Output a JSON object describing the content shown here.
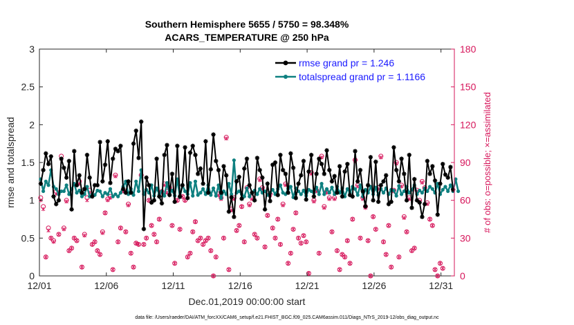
{
  "chart_data": {
    "type": "line",
    "title_line1": "Southern Hemisphere 5655 / 5750 = 98.348%",
    "title_line2": "ACARS_TEMPERATURE @ 250 hPa",
    "xlabel": "Dec.01,2019 00:00:00 start",
    "ylabel_left": "rmse and totalspread",
    "ylabel_right": "# of obs: o=possible; ×=assimilated",
    "xlim": [
      0,
      31
    ],
    "ylim_left": [
      0,
      3
    ],
    "ylim_right": [
      0,
      180
    ],
    "x_tick_values": [
      0,
      5,
      10,
      15,
      20,
      25,
      30
    ],
    "x_tick_labels": [
      "12/01",
      "12/06",
      "12/11",
      "12/16",
      "12/21",
      "12/26",
      "12/31"
    ],
    "y_left_ticks": [
      "0",
      "0.5",
      "1",
      "1.5",
      "2",
      "2.5",
      "3"
    ],
    "y_right_ticks": [
      "0",
      "30",
      "60",
      "90",
      "120",
      "150",
      "180"
    ],
    "footnote": "data file: /Users/raeder/DAI/ATM_forcXX/CAM6_setup/f.e21.FHIST_BGC.f09_025.CAM6assim.011/Diags_NTrS_2019-12/obs_diag_output.nc",
    "colors": {
      "rmse": "#000000",
      "spread": "#0e8080",
      "obs": "#d6155a",
      "axis_right": "#d6155a"
    },
    "series": [
      {
        "name": "rmse",
        "legend": "rmse grand pr = 1.246",
        "values": [
          1.22,
          1.4,
          1.62,
          1.48,
          1.58,
          1.05,
          0.95,
          1.0,
          1.55,
          1.43,
          1.3,
          1.52,
          0.88,
          1.65,
          1.2,
          1.33,
          1.1,
          1.15,
          1.6,
          1.3,
          1.05,
          1.2,
          1.2,
          1.77,
          1.25,
          1.47,
          1.78,
          1.23,
          1.55,
          1.68,
          1.65,
          1.72,
          1.15,
          1.1,
          1.25,
          1.1,
          1.75,
          1.92,
          1.56,
          2.04,
          0.62,
          1.3,
          1.2,
          0.97,
          1.0,
          1.55,
          1.05,
          0.96,
          1.6,
          1.73,
          1.07,
          1.35,
          0.98,
          1.72,
          1.05,
          1.2,
          1.7,
          1.03,
          1.63,
          1.72,
          1.6,
          1.35,
          1.42,
          1.22,
          1.78,
          1.1,
          1.41,
          1.87,
          1.52,
          1.4,
          1.1,
          1.45,
          1.33,
          0.85,
          1.04,
          0.78,
          1.25,
          1.31,
          1.02,
          1.42,
          1.55,
          1.2,
          1.1,
          1.0,
          1.56,
          1.4,
          1.3,
          0.88,
          1.22,
          0.99,
          1.47,
          1.5,
          1.07,
          1.6,
          1.4,
          1.35,
          1.1,
          1.62,
          1.43,
          1.03,
          1.22,
          1.33,
          1.52,
          1.01,
          1.38,
          1.6,
          1.05,
          1.35,
          1.55,
          1.48,
          1.35,
          1.66,
          1.4,
          1.25,
          1.32,
          1.1,
          1.45,
          1.05,
          1.38,
          1.48,
          1.07,
          1.05,
          1.65,
          1.25,
          1.4,
          1.12,
          0.92,
          1.2,
          1.57,
          1.0,
          1.51,
          0.98,
          1.2,
          1.25,
          1.33,
          0.95,
          0.98,
          1.7,
          1.4,
          1.25,
          1.55,
          1.35,
          1.0,
          1.6,
          0.9,
          1.28,
          1.0,
          0.97,
          0.78,
          0.95,
          1.52,
          1.35,
          1.45,
          1.26,
          0.81,
          1.22,
          1.48,
          1.34,
          1.3,
          1.44,
          1.14
        ]
      },
      {
        "name": "totalspread",
        "legend": "totalspread grand pr = 1.1166",
        "values": [
          1.28,
          1.12,
          1.25,
          1.2,
          1.4,
          1.18,
          1.15,
          1.08,
          1.12,
          1.12,
          1.2,
          1.08,
          1.15,
          1.22,
          1.1,
          1.13,
          1.05,
          1.08,
          1.18,
          1.05,
          1.08,
          1.07,
          1.13,
          1.12,
          1.05,
          1.1,
          1.08,
          1.15,
          1.05,
          1.08,
          1.05,
          1.1,
          1.18,
          1.25,
          1.08,
          1.15,
          1.07,
          1.25,
          1.12,
          1.4,
          1.08,
          1.14,
          1.1,
          1.2,
          1.06,
          1.16,
          1.08,
          1.12,
          1.06,
          1.23,
          1.08,
          1.13,
          1.06,
          1.28,
          1.04,
          1.2,
          1.12,
          1.08,
          1.23,
          1.06,
          1.25,
          1.07,
          1.1,
          1.15,
          1.08,
          1.2,
          1.07,
          1.16,
          1.06,
          1.2,
          1.03,
          1.12,
          1.08,
          1.22,
          1.08,
          1.53,
          1.1,
          1.12,
          1.08,
          1.05,
          1.16,
          1.05,
          1.1,
          1.13,
          1.08,
          1.15,
          1.1,
          1.12,
          1.07,
          1.1,
          1.14,
          1.08,
          1.15,
          1.2,
          1.1,
          1.08,
          1.15,
          1.18,
          1.04,
          1.16,
          1.12,
          1.08,
          1.13,
          1.06,
          1.14,
          1.12,
          1.1,
          1.17,
          1.08,
          1.22,
          1.08,
          1.15,
          1.1,
          1.17,
          1.08,
          1.18,
          1.1,
          1.16,
          1.05,
          1.15,
          1.1,
          1.18,
          1.15,
          1.07,
          1.2,
          1.05,
          1.14,
          1.1,
          1.18,
          1.08,
          1.17,
          1.07,
          1.15,
          1.1,
          1.16,
          1.08,
          1.14,
          1.13,
          1.06,
          1.19,
          1.08,
          1.12,
          1.18,
          1.1,
          1.14,
          1.2,
          1.08,
          1.13,
          1.1,
          1.16,
          1.12,
          1.18,
          1.15,
          1.1,
          1.22,
          1.08,
          1.14,
          1.18,
          1.12,
          1.2,
          1.12,
          1.28,
          1.12
        ]
      },
      {
        "name": "obs_possible",
        "marker": "o",
        "values": [
          62,
          55,
          15,
          38,
          30,
          28,
          67,
          33,
          95,
          38,
          60,
          20,
          22,
          30,
          28,
          75,
          7,
          33,
          62,
          68,
          25,
          27,
          20,
          17,
          35,
          50,
          61,
          63,
          5,
          80,
          27,
          38,
          68,
          35,
          57,
          18,
          7,
          26,
          25,
          80,
          25,
          30,
          60,
          40,
          33,
          27,
          45,
          67,
          73,
          67,
          70,
          40,
          10,
          60,
          37,
          63,
          60,
          15,
          18,
          35,
          43,
          28,
          30,
          25,
          28,
          30,
          20,
          0,
          15,
          65,
          62,
          30,
          110,
          5,
          53,
          62,
          36,
          40,
          55,
          27,
          70,
          57,
          62,
          33,
          30,
          77,
          70,
          23,
          48,
          65,
          38,
          30,
          45,
          25,
          57,
          73,
          10,
          18,
          37,
          50,
          30,
          26,
          32,
          27,
          2,
          82,
          60,
          68,
          18,
          95,
          55,
          67,
          62,
          35,
          62,
          20,
          5,
          17,
          15,
          28,
          10,
          45,
          92,
          72,
          30,
          62,
          55,
          28,
          0,
          47,
          37,
          70,
          95,
          27,
          17,
          40,
          7,
          68,
          90,
          15,
          72,
          47,
          35,
          62,
          20,
          22,
          68,
          60,
          75,
          70,
          58,
          45,
          40,
          5,
          0,
          10,
          6
        ]
      },
      {
        "name": "obs_assimilated",
        "marker": "x",
        "values": [
          60,
          53,
          15,
          36,
          30,
          27,
          65,
          33,
          93,
          37,
          59,
          20,
          22,
          30,
          28,
          73,
          7,
          32,
          60,
          66,
          25,
          27,
          20,
          17,
          34,
          50,
          60,
          62,
          5,
          79,
          27,
          38,
          67,
          35,
          56,
          18,
          7,
          26,
          25,
          79,
          25,
          30,
          60,
          40,
          33,
          27,
          45,
          66,
          72,
          66,
          70,
          40,
          10,
          60,
          37,
          63,
          60,
          15,
          18,
          35,
          43,
          28,
          30,
          25,
          28,
          30,
          20,
          0,
          15,
          64,
          61,
          30,
          109,
          5,
          52,
          61,
          36,
          40,
          55,
          27,
          69,
          56,
          61,
          33,
          30,
          76,
          69,
          23,
          48,
          64,
          38,
          30,
          45,
          25,
          56,
          72,
          10,
          18,
          37,
          50,
          30,
          26,
          32,
          27,
          2,
          81,
          59,
          67,
          18,
          94,
          54,
          66,
          61,
          35,
          61,
          20,
          5,
          17,
          15,
          28,
          10,
          45,
          91,
          71,
          30,
          61,
          54,
          28,
          0,
          47,
          37,
          69,
          94,
          27,
          17,
          40,
          7,
          67,
          89,
          15,
          71,
          46,
          35,
          61,
          20,
          22,
          67,
          59,
          74,
          69,
          57,
          45,
          40,
          5,
          0,
          10,
          6
        ]
      }
    ]
  }
}
